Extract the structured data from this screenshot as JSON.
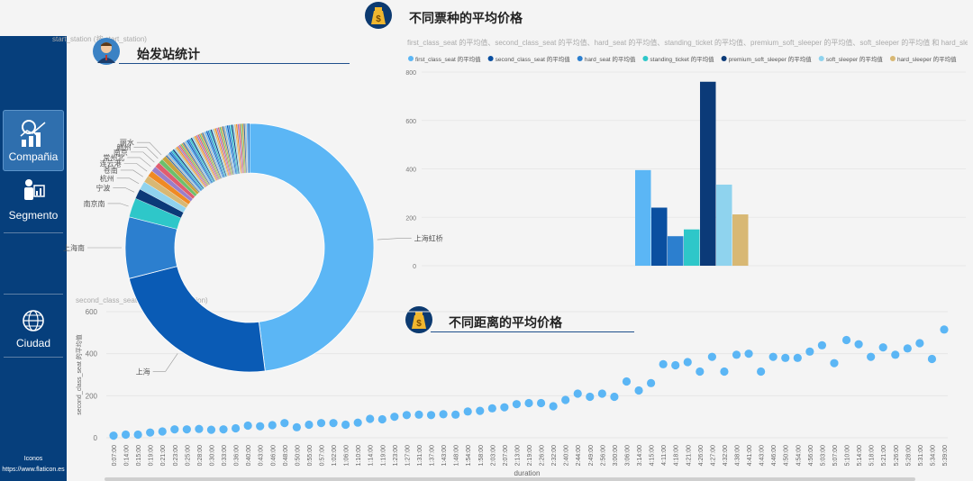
{
  "sidebar": {
    "items": [
      {
        "label": "Compañia",
        "active": true
      },
      {
        "label": "Segmento",
        "active": false
      },
      {
        "label": "Ciudad",
        "active": false
      }
    ],
    "credits_title": "Iconos",
    "credits_url": "https://www.flaticon.es"
  },
  "station_panel": {
    "title": "始发站统计",
    "subtitle": "start_station (按 start_station)"
  },
  "ticket_panel": {
    "title": "不同票种的平均价格",
    "subtitle": "first_class_seat 的平均值、second_class_seat 的平均值、hard_seat 的平均值、standing_ticket 的平均值、premium_soft_sleeper 的平均值、soft_sleeper 的平均值 和 hard_sle..."
  },
  "distance_panel": {
    "title": "不同距离的平均价格",
    "subtitle": "second_class_seat 的平均值(按 duration)"
  },
  "colors": {
    "sidebar": "#063f7c",
    "accent": "#5bb6f5",
    "dark_blue": "#0a5bb5"
  },
  "chart_data": [
    {
      "type": "pie",
      "style": "donut",
      "labels": [
        "上海虹桥",
        "上海",
        "上海南",
        "南京南",
        "宁波",
        "杭州",
        "苍南",
        "连云港",
        "常州北",
        "南京",
        "赣州",
        "丽水"
      ],
      "values": [
        48,
        23,
        8,
        2.5,
        1.3,
        1.1,
        0.9,
        0.8,
        0.7,
        0.7,
        0.6,
        0.6
      ],
      "other_slices": 60
    },
    {
      "type": "bar",
      "legend_position": "top",
      "series": [
        {
          "name": "first_class_seat 的平均值",
          "value": 395,
          "color": "#5bb6f5"
        },
        {
          "name": "second_class_seat 的平均值",
          "value": 240,
          "color": "#0a4fa0"
        },
        {
          "name": "hard_seat 的平均值",
          "value": 122,
          "color": "#2c7fcf"
        },
        {
          "name": "standing_ticket 的平均值",
          "value": 150,
          "color": "#2ec7c9"
        },
        {
          "name": "premium_soft_sleeper 的平均值",
          "value": 760,
          "color": "#0b3a78"
        },
        {
          "name": "soft_sleeper 的平均值",
          "value": 335,
          "color": "#8fd3ee"
        },
        {
          "name": "hard_sleeper 的平均值",
          "value": 212,
          "color": "#d8b874"
        }
      ],
      "yticks": [
        0,
        200,
        400,
        600,
        800
      ],
      "ylim": [
        0,
        800
      ]
    },
    {
      "type": "scatter",
      "xlabel": "duration",
      "ylabel": "second_class_seat 的平均值",
      "yticks": [
        0,
        200,
        400,
        600
      ],
      "ylim": [
        0,
        600
      ],
      "x": [
        "0:07:00",
        "0:14:00",
        "0:15:00",
        "0:19:00",
        "0:21:00",
        "0:23:00",
        "0:25:00",
        "0:28:00",
        "0:30:00",
        "0:33:00",
        "0:36:00",
        "0:40:00",
        "0:43:00",
        "0:46:00",
        "0:48:00",
        "0:50:00",
        "0:55:00",
        "0:57:00",
        "1:02:00",
        "1:06:00",
        "1:10:00",
        "1:14:00",
        "1:19:00",
        "1:23:00",
        "1:27:00",
        "1:31:00",
        "1:37:00",
        "1:43:00",
        "1:48:00",
        "1:54:00",
        "1:58:00",
        "2:03:00",
        "2:07:00",
        "2:13:00",
        "2:19:00",
        "2:26:00",
        "2:32:00",
        "2:40:00",
        "2:44:00",
        "2:49:00",
        "2:56:00",
        "3:00:00",
        "3:06:00",
        "3:14:00",
        "4:15:00",
        "4:11:00",
        "4:18:00",
        "4:21:00",
        "4:26:00",
        "4:27:00",
        "4:32:00",
        "4:38:00",
        "4:41:00",
        "4:43:00",
        "4:46:00",
        "4:50:00",
        "4:54:00",
        "4:56:00",
        "5:03:00",
        "5:07:00",
        "5:10:00",
        "5:14:00",
        "5:18:00",
        "5:21:00",
        "5:26:00",
        "5:28:00",
        "5:31:00",
        "5:34:00",
        "5:39:00"
      ],
      "y": [
        10,
        15,
        15,
        25,
        30,
        40,
        40,
        42,
        38,
        40,
        45,
        58,
        55,
        60,
        70,
        50,
        62,
        70,
        70,
        62,
        72,
        90,
        88,
        100,
        108,
        110,
        108,
        112,
        110,
        125,
        128,
        140,
        145,
        160,
        165,
        165,
        150,
        180,
        210,
        195,
        210,
        195,
        268,
        225,
        260,
        350,
        345,
        360,
        315,
        385,
        315,
        395,
        400,
        315,
        385,
        380,
        380,
        410,
        440,
        355,
        465,
        445,
        385,
        430,
        395,
        425,
        450,
        375,
        515
      ]
    }
  ]
}
